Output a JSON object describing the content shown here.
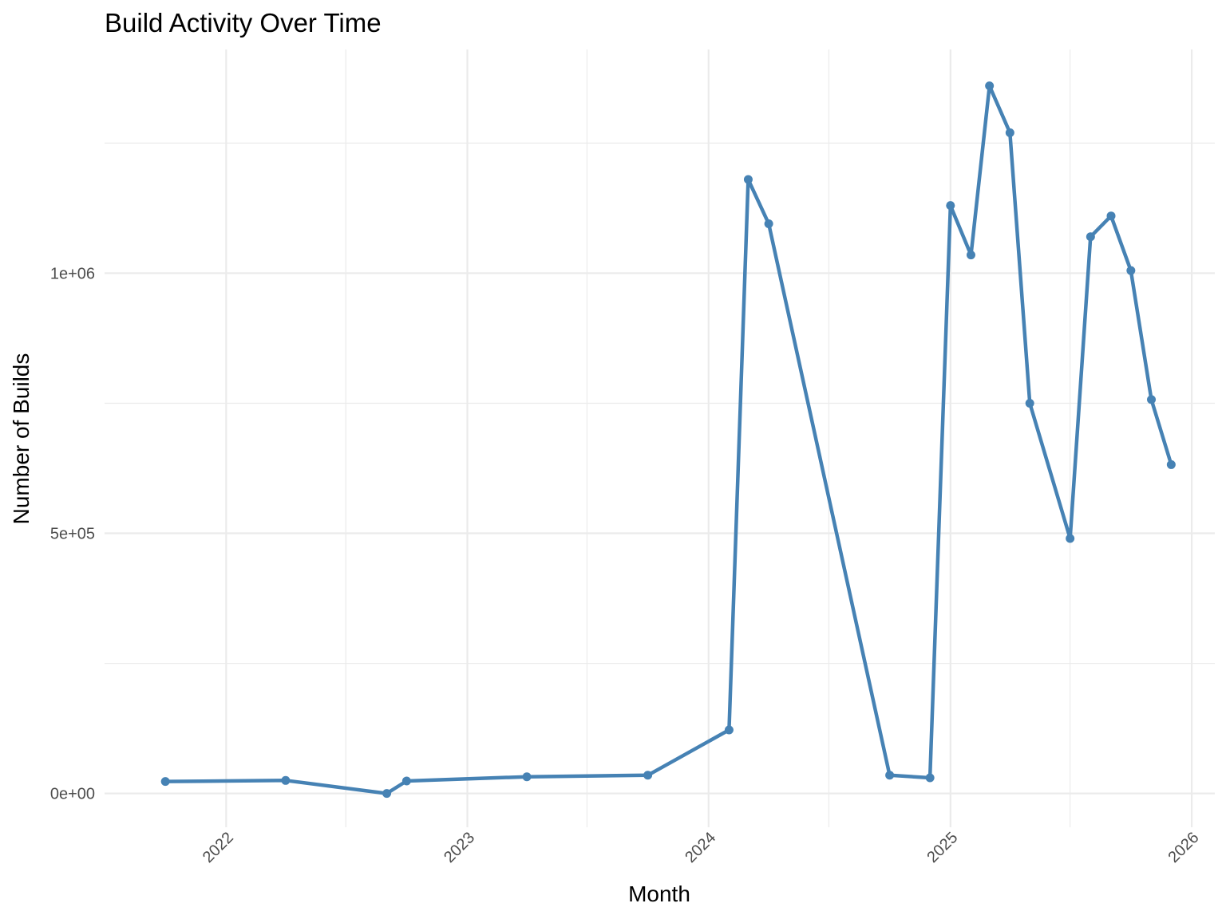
{
  "chart_data": {
    "type": "line",
    "title": "Build Activity Over Time",
    "xlabel": "Month",
    "ylabel": "Number of Builds",
    "x_ticks": [
      "2022",
      "2023",
      "2024",
      "2025",
      "2026"
    ],
    "y_ticks": [
      "0e+00",
      "5e+05",
      "1e+06"
    ],
    "y_tick_values": [
      0,
      500000,
      1000000
    ],
    "ylim": [
      -65000,
      1430000
    ],
    "xlim": [
      "2021-07-01",
      "2026-02-05"
    ],
    "grid": true,
    "legend": "none",
    "color": "#4682b4",
    "series": [
      {
        "x": [
          "2021-10-01",
          "2022-04-01",
          "2022-09-01",
          "2022-10-01",
          "2023-04-01",
          "2023-10-01",
          "2024-02-01",
          "2024-03-01",
          "2024-04-01",
          "2024-10-01",
          "2024-12-01",
          "2025-01-01",
          "2025-02-01",
          "2025-03-01",
          "2025-04-01",
          "2025-05-01",
          "2025-07-01",
          "2025-08-01",
          "2025-09-01",
          "2025-10-01",
          "2025-11-01",
          "2025-12-01"
        ],
        "values": [
          23000,
          25000,
          0,
          24000,
          32000,
          35000,
          122000,
          1180000,
          1095000,
          35000,
          30000,
          1130000,
          1035000,
          1360000,
          1270000,
          750000,
          490000,
          1070000,
          1110000,
          1005000,
          757000,
          632000
        ]
      }
    ]
  }
}
